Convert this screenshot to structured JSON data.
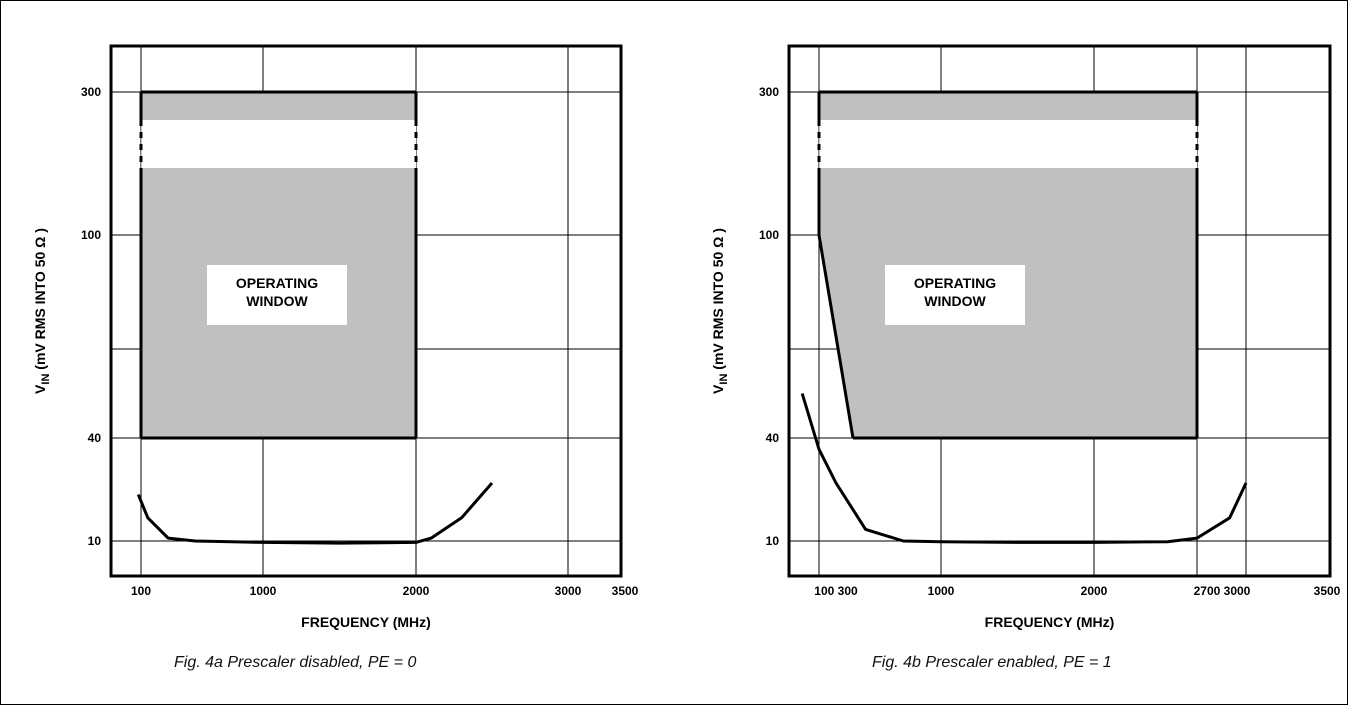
{
  "chart_data": [
    {
      "type": "area",
      "caption": "Fig. 4a Prescaler disabled, PE = 0",
      "xlabel": "FREQUENCY (MHz)",
      "ylabel_main": "V",
      "ylabel_sub": "IN",
      "ylabel_rest": " (mV RMS INTO 50 Ω )",
      "x_tick_labels": [
        "100",
        "1000",
        "2000",
        "3000",
        "3500"
      ],
      "y_tick_labels": [
        "300",
        "100",
        "40",
        "10"
      ],
      "window_label_lines": [
        "OPERATING",
        "WINDOW"
      ],
      "grid": true,
      "operating_window": {
        "boundary": [
          [
            100,
            40
          ],
          [
            100,
            300
          ],
          [
            2000,
            300
          ],
          [
            2000,
            40
          ]
        ],
        "dashed_region_y": [
          220,
          145
        ]
      },
      "series": [
        {
          "name": "",
          "x": [
            80,
            150,
            300,
            500,
            1000,
            1500,
            2000,
            2100,
            2300,
            2500
          ],
          "y": [
            18,
            14,
            10.5,
            10,
            9.8,
            9.7,
            9.8,
            10.5,
            14,
            20
          ]
        }
      ]
    },
    {
      "type": "area",
      "caption": "Fig. 4b Prescaler enabled, PE = 1",
      "xlabel": "FREQUENCY (MHz)",
      "ylabel_main": "V",
      "ylabel_sub": "IN",
      "ylabel_rest": " (mV RMS INTO 50 Ω )",
      "x_tick_labels": [
        "100 300",
        "1000",
        "2000",
        "2700 3000",
        "3500"
      ],
      "y_tick_labels": [
        "300",
        "100",
        "40",
        "10"
      ],
      "window_label_lines": [
        "OPERATING",
        "WINDOW"
      ],
      "grid": true,
      "operating_window": {
        "boundary": [
          [
            100,
            100
          ],
          [
            100,
            300
          ],
          [
            2700,
            300
          ],
          [
            2700,
            40
          ],
          [
            300,
            40
          ]
        ],
        "dashed_region_y": [
          220,
          145
        ]
      },
      "series": [
        {
          "name": "",
          "x": [
            30,
            100,
            200,
            400,
            700,
            1000,
            1500,
            2000,
            2500,
            2700,
            2900,
            3000
          ],
          "y": [
            55,
            35,
            20,
            12,
            10,
            9.9,
            9.8,
            9.8,
            9.9,
            10.5,
            14,
            20
          ]
        }
      ]
    }
  ]
}
